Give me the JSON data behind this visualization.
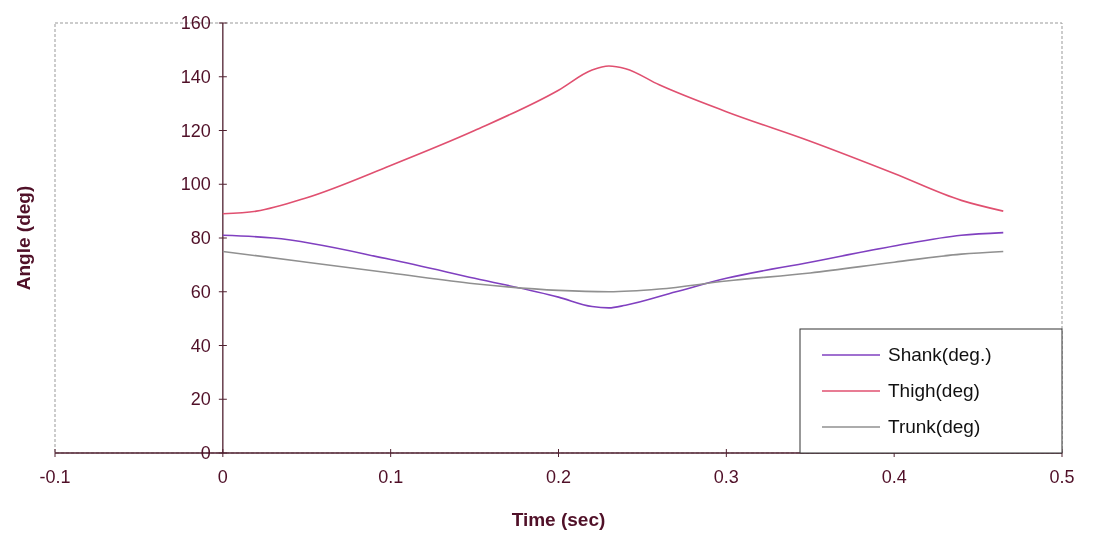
{
  "chart_data": {
    "type": "line",
    "xlabel": "Time (sec)",
    "ylabel": "Angle (deg)",
    "xlim": [
      -0.1,
      0.5
    ],
    "xticks": [
      -0.1,
      0,
      0.1,
      0.2,
      0.3,
      0.4,
      0.5
    ],
    "ylim": [
      0,
      160
    ],
    "yticks": [
      0,
      20,
      40,
      60,
      80,
      100,
      120,
      140,
      160
    ],
    "grid": false,
    "legend": "bottom right",
    "marker": "none",
    "line_style": "solid",
    "series": [
      {
        "name": "Shank(deg.)",
        "color": "#8040c0",
        "x": [
          0,
          0.03,
          0.1,
          0.15,
          0.2,
          0.22,
          0.23,
          0.24,
          0.27,
          0.3,
          0.35,
          0.4,
          0.44,
          0.465
        ],
        "values": [
          81,
          80,
          72,
          65,
          58,
          54.5,
          54,
          55,
          60,
          65,
          71,
          77,
          81,
          82
        ]
      },
      {
        "name": "Thigh(deg)",
        "color": "#e05070",
        "x": [
          0,
          0.02,
          0.05,
          0.1,
          0.15,
          0.2,
          0.22,
          0.23,
          0.24,
          0.26,
          0.3,
          0.35,
          0.4,
          0.44,
          0.465
        ],
        "values": [
          89,
          90,
          95,
          107,
          120,
          135,
          142.5,
          144,
          143,
          137,
          127,
          116,
          104,
          94,
          90
        ]
      },
      {
        "name": "Trunk(deg)",
        "color": "#909090",
        "x": [
          0,
          0.05,
          0.1,
          0.15,
          0.2,
          0.23,
          0.26,
          0.3,
          0.35,
          0.4,
          0.44,
          0.465
        ],
        "values": [
          75,
          71,
          67,
          63,
          60.5,
          60,
          61,
          64,
          67,
          71,
          74,
          75
        ]
      }
    ]
  }
}
